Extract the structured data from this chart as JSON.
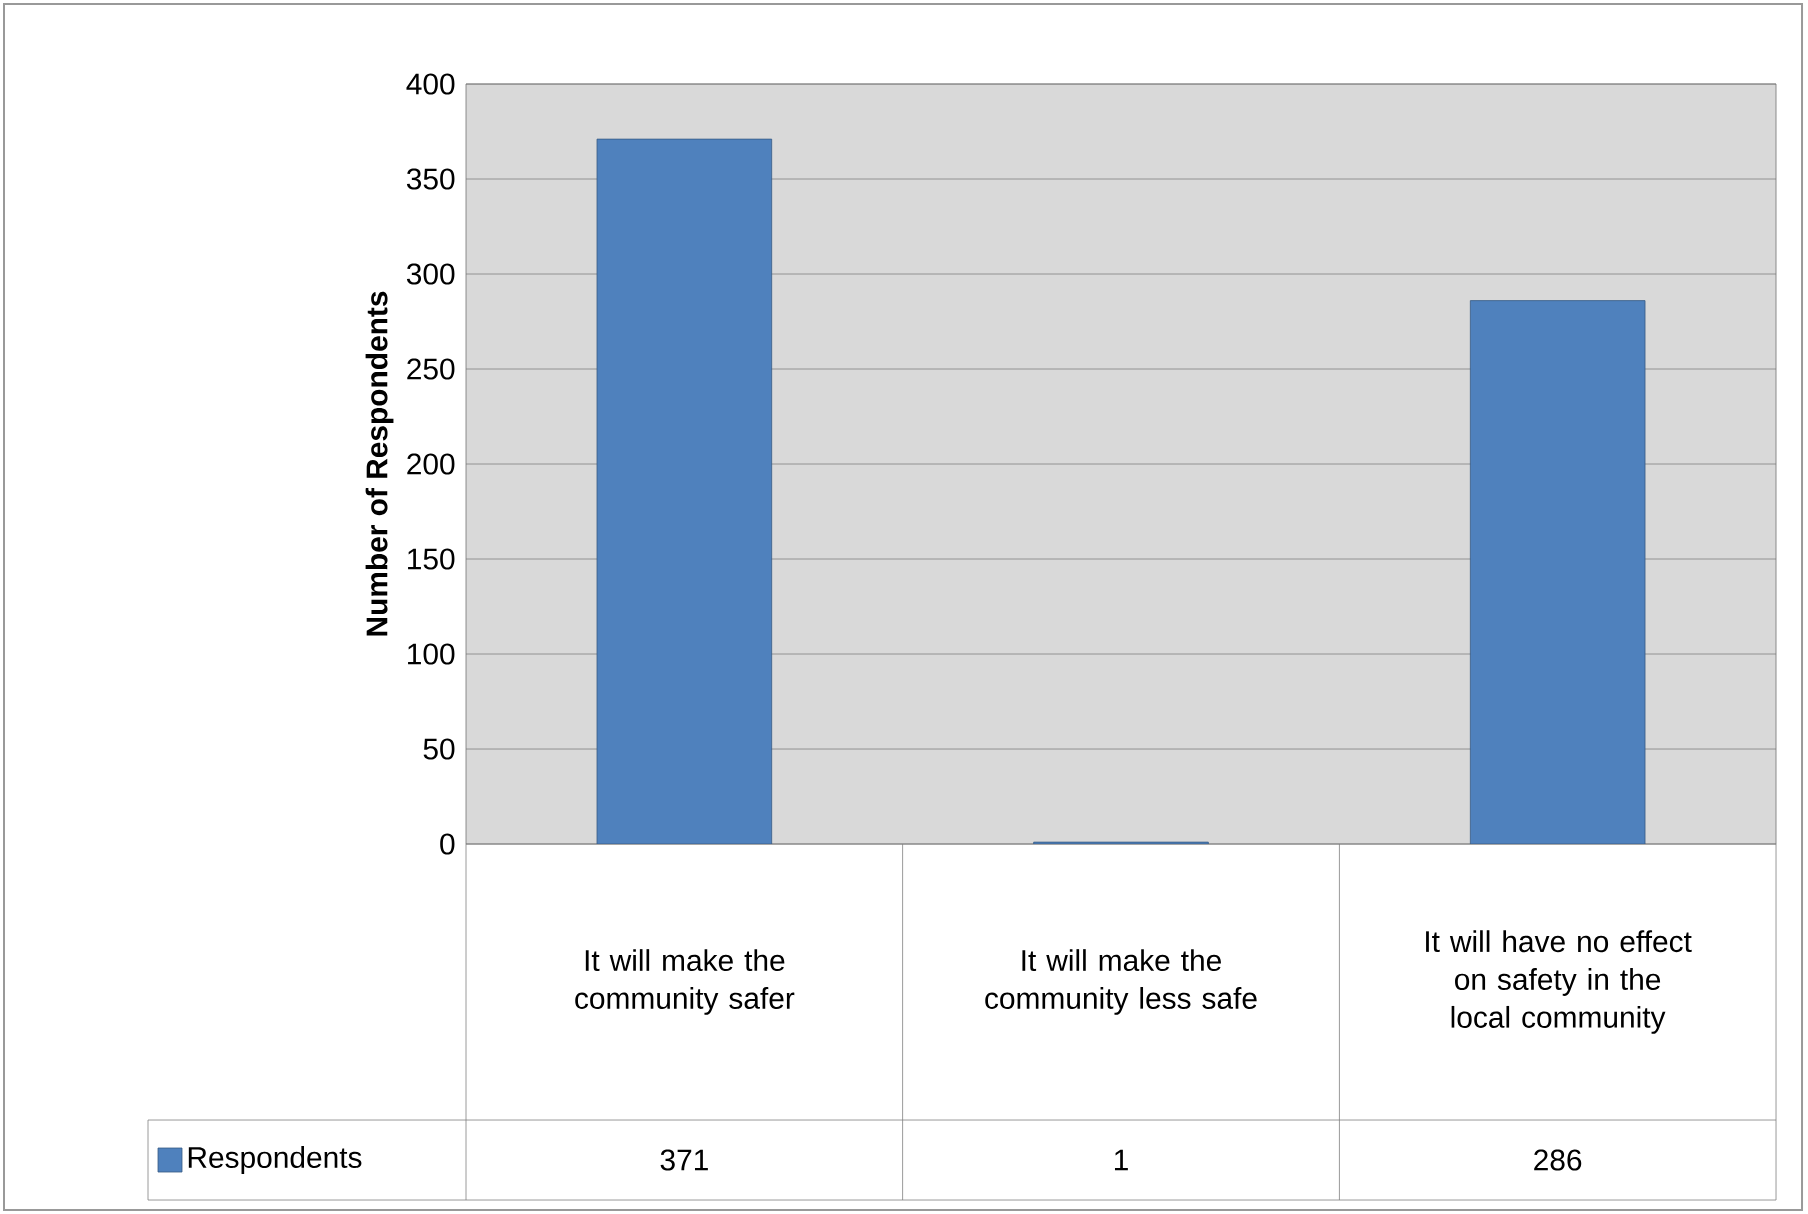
{
  "chart_data": {
    "type": "bar",
    "ylabel": "Number of Respondents",
    "categories": [
      "It will make the community safer",
      "It will make the community less safe",
      "It will have no effect on safety in the local community"
    ],
    "series": [
      {
        "name": "Respondents",
        "color": "#4f81bd",
        "values": [
          371,
          1,
          286
        ]
      }
    ],
    "ylim": [
      0,
      400
    ],
    "yticks": [
      0,
      50,
      100,
      150,
      200,
      250,
      300,
      350,
      400
    ],
    "grid": "y",
    "legend": "bottom",
    "data_labels": true
  }
}
